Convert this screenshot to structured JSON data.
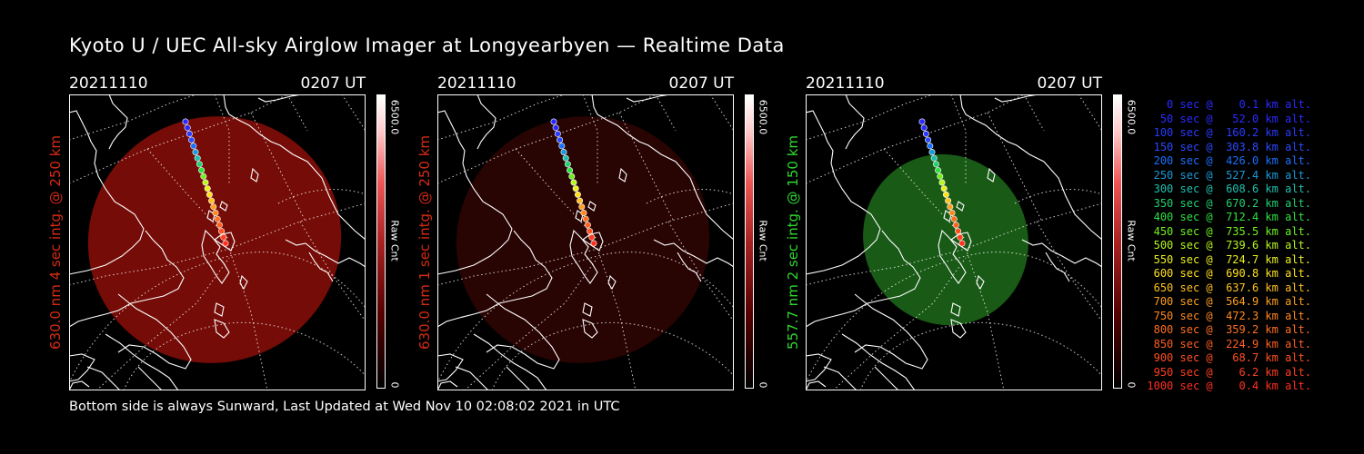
{
  "title": "Kyoto U / UEC All-sky Airglow Imager at Longyearbyen — Realtime Data",
  "footer": "Bottom side is always Sunward, Last Updated at Wed Nov 10 02:08:02 2021 in UTC",
  "panels": [
    {
      "date": "20211110",
      "time": "0207 UT",
      "ylabel": "630.0 nm 4 sec intg. @ 250 km",
      "ylabel_color": "#d62b14",
      "glow": "#8a0e08",
      "glow_opacity": "0.85",
      "cbar_max": "6500.0",
      "cbar_unit": "Raw Cnt",
      "cbar_min": "0"
    },
    {
      "date": "20211110",
      "time": "0207 UT",
      "ylabel": "630.0 nm 1 sec intg. @ 250 km",
      "ylabel_color": "#d62b14",
      "glow": "#2c0403",
      "glow_opacity": "0.9",
      "cbar_max": "6500.0",
      "cbar_unit": "Raw Cnt",
      "cbar_min": "0"
    },
    {
      "date": "20211110",
      "time": "0207 UT",
      "ylabel": "557.7 nm 2 sec intg. @ 150 km",
      "ylabel_color": "#2fd82f",
      "glow": "#1d6a1a",
      "glow_opacity": "0.85",
      "cbar_max": "6500.0",
      "cbar_unit": "Raw Cnt",
      "cbar_min": "0"
    }
  ],
  "legend": [
    {
      "text": "   0 sec @    0.1 km alt.",
      "color": "#2a2aff"
    },
    {
      "text": "  50 sec @   52.0 km alt.",
      "color": "#2a2aff"
    },
    {
      "text": " 100 sec @  160.2 km alt.",
      "color": "#2a3aff"
    },
    {
      "text": " 150 sec @  303.8 km alt.",
      "color": "#2a4aff"
    },
    {
      "text": " 200 sec @  426.0 km alt.",
      "color": "#1a70ff"
    },
    {
      "text": " 250 sec @  527.4 km alt.",
      "color": "#1a9ad8"
    },
    {
      "text": " 300 sec @  608.6 km alt.",
      "color": "#1ec0b0"
    },
    {
      "text": " 350 sec @  670.2 km alt.",
      "color": "#22d070"
    },
    {
      "text": " 400 sec @  712.4 km alt.",
      "color": "#30e040"
    },
    {
      "text": " 450 sec @  735.5 km alt.",
      "color": "#70f020"
    },
    {
      "text": " 500 sec @  739.6 km alt.",
      "color": "#b8f81e"
    },
    {
      "text": " 550 sec @  724.7 km alt.",
      "color": "#eaf020"
    },
    {
      "text": " 600 sec @  690.8 km alt.",
      "color": "#ffe020"
    },
    {
      "text": " 650 sec @  637.6 km alt.",
      "color": "#ffc020"
    },
    {
      "text": " 700 sec @  564.9 km alt.",
      "color": "#ffa020"
    },
    {
      "text": " 750 sec @  472.3 km alt.",
      "color": "#ff8820"
    },
    {
      "text": " 800 sec @  359.2 km alt.",
      "color": "#ff7020"
    },
    {
      "text": " 850 sec @  224.9 km alt.",
      "color": "#ff6020"
    },
    {
      "text": " 900 sec @   68.7 km alt.",
      "color": "#ff5020"
    },
    {
      "text": " 950 sec @    6.2 km alt.",
      "color": "#ff4020"
    },
    {
      "text": "1000 sec @    0.4 km alt.",
      "color": "#ff3020"
    }
  ]
}
